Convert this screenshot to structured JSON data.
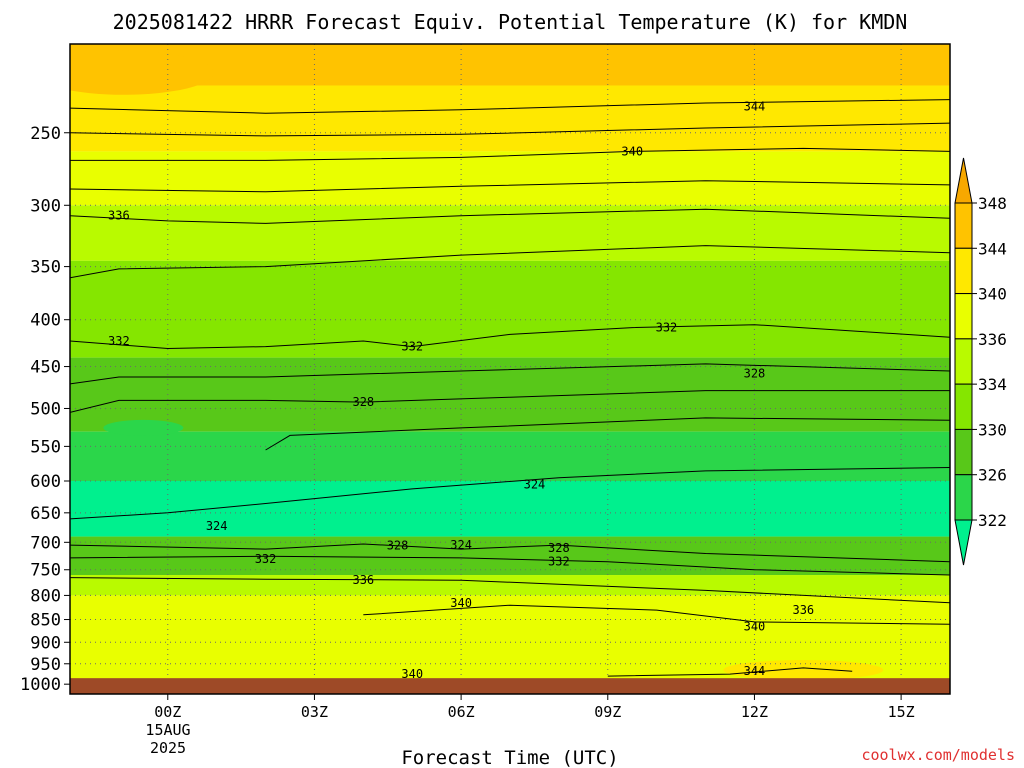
{
  "chart_data": {
    "type": "time-height contour",
    "title": "2025081422 HRRR Forecast Equiv. Potential Temperature (K) for KMDN",
    "xlabel": "Forecast Time (UTC)",
    "ylabel": "",
    "x_ticks": [
      {
        "hours": 2,
        "label": "00Z"
      },
      {
        "hours": 5,
        "label": "03Z"
      },
      {
        "hours": 8,
        "label": "06Z"
      },
      {
        "hours": 11,
        "label": "09Z"
      },
      {
        "hours": 14,
        "label": "12Z"
      },
      {
        "hours": 17,
        "label": "15Z"
      }
    ],
    "x_range": [
      0,
      18
    ],
    "date_label_line1": "15AUG",
    "date_label_line2": "2025",
    "y_scale": "log",
    "y_ticks": [
      250,
      300,
      350,
      400,
      450,
      500,
      550,
      600,
      650,
      700,
      750,
      800,
      850,
      900,
      950,
      1000
    ],
    "y_range": [
      200,
      1025
    ],
    "grid": true,
    "surface_pressure": 985,
    "surface_color": "#9e4a27",
    "colorbar": {
      "levels": [
        322,
        326,
        330,
        334,
        336,
        340,
        344,
        348
      ],
      "colors": [
        "#00f08e",
        "#2bd64a",
        "#58c819",
        "#85e600",
        "#b9fa00",
        "#e9ff00",
        "#ffe800",
        "#ffc300",
        "#f7a800"
      ],
      "extend": "both"
    },
    "contour_levels": [
      {
        "value": 344,
        "points": [
          [
            0,
            235
          ],
          [
            4,
            238
          ],
          [
            8,
            236
          ],
          [
            13,
            232
          ],
          [
            18,
            230
          ]
        ],
        "labels": [
          [
            14,
            234
          ]
        ]
      },
      {
        "value": 342,
        "points": [
          [
            0,
            250
          ],
          [
            4,
            252
          ],
          [
            8,
            251
          ],
          [
            13,
            247
          ],
          [
            18,
            244
          ]
        ],
        "labels": []
      },
      {
        "value": 340,
        "points": [
          [
            0,
            268
          ],
          [
            4,
            268
          ],
          [
            8,
            266
          ],
          [
            11.5,
            262
          ],
          [
            15,
            260
          ],
          [
            18,
            262
          ]
        ],
        "labels": [
          [
            11.5,
            262
          ]
        ]
      },
      {
        "value": 338,
        "points": [
          [
            0,
            288
          ],
          [
            4,
            290
          ],
          [
            8,
            286
          ],
          [
            13,
            282
          ],
          [
            18,
            285
          ]
        ],
        "labels": []
      },
      {
        "value": 336,
        "points": [
          [
            0,
            308
          ],
          [
            2,
            312
          ],
          [
            4,
            314
          ],
          [
            8,
            308
          ],
          [
            13,
            303
          ],
          [
            18,
            310
          ]
        ],
        "labels": [
          [
            1,
            308
          ]
        ]
      },
      {
        "value": 334,
        "points": [
          [
            0,
            360
          ],
          [
            1,
            352
          ],
          [
            4,
            350
          ],
          [
            8,
            340
          ],
          [
            13,
            332
          ],
          [
            18,
            338
          ]
        ],
        "labels": []
      },
      {
        "value": 332,
        "points": [
          [
            0,
            422
          ],
          [
            2,
            430
          ],
          [
            4,
            428
          ],
          [
            6,
            422
          ],
          [
            7,
            428
          ],
          [
            9,
            415
          ],
          [
            11.5,
            408
          ],
          [
            14,
            405
          ],
          [
            18,
            418
          ]
        ],
        "labels": [
          [
            1,
            422
          ],
          [
            7,
            428
          ],
          [
            12.2,
            408
          ]
        ]
      },
      {
        "value": 330,
        "points": [
          [
            0,
            470
          ],
          [
            1,
            462
          ],
          [
            4,
            462
          ],
          [
            8,
            455
          ],
          [
            13,
            447
          ],
          [
            18,
            455
          ]
        ],
        "labels": []
      },
      {
        "value": 328,
        "points": [
          [
            0,
            505
          ],
          [
            1,
            490
          ],
          [
            4,
            490
          ],
          [
            6,
            492
          ],
          [
            9,
            486
          ],
          [
            13,
            478
          ],
          [
            18,
            478
          ]
        ],
        "labels": [
          [
            6,
            492
          ],
          [
            14,
            458
          ]
        ]
      },
      {
        "value": 326,
        "points": [
          [
            4,
            555
          ],
          [
            4.5,
            535
          ],
          [
            8,
            525
          ],
          [
            13,
            512
          ],
          [
            18,
            515
          ]
        ],
        "labels": []
      },
      {
        "value": 324,
        "points": [
          [
            0,
            660
          ],
          [
            2,
            650
          ],
          [
            4,
            635
          ],
          [
            7,
            612
          ],
          [
            10,
            595
          ],
          [
            13,
            585
          ],
          [
            18,
            580
          ]
        ],
        "labels": [
          [
            9.5,
            605
          ],
          [
            3,
            672
          ],
          [
            8,
            705
          ]
        ]
      },
      {
        "value": 332,
        "points": [
          [
            0,
            728
          ],
          [
            4,
            725
          ],
          [
            8,
            728
          ],
          [
            11,
            735
          ],
          [
            14,
            750
          ],
          [
            18,
            760
          ]
        ],
        "labels": [
          [
            4,
            730
          ],
          [
            10,
            735
          ]
        ]
      },
      {
        "value": 328,
        "points": [
          [
            0,
            705
          ],
          [
            4,
            712
          ],
          [
            6,
            703
          ],
          [
            8,
            712
          ],
          [
            10,
            705
          ],
          [
            13,
            720
          ],
          [
            18,
            735
          ]
        ],
        "labels": [
          [
            6.7,
            706
          ],
          [
            10,
            710
          ]
        ]
      },
      {
        "value": 336,
        "points": [
          [
            0,
            765
          ],
          [
            4,
            768
          ],
          [
            8,
            770
          ],
          [
            13,
            790
          ],
          [
            18,
            815
          ]
        ],
        "labels": [
          [
            6,
            770
          ],
          [
            15,
            830
          ]
        ]
      },
      {
        "value": 340,
        "points": [
          [
            6,
            840
          ],
          [
            9,
            820
          ],
          [
            12,
            830
          ],
          [
            14,
            855
          ],
          [
            18,
            860
          ]
        ],
        "labels": [
          [
            8,
            815
          ],
          [
            14,
            865
          ],
          [
            7,
            975
          ]
        ]
      },
      {
        "value": 344,
        "points": [
          [
            11,
            980
          ],
          [
            13.5,
            975
          ],
          [
            15,
            960
          ],
          [
            16,
            968
          ]
        ],
        "labels": [
          [
            14,
            968
          ]
        ]
      }
    ]
  },
  "watermark": "coolwx.com/models"
}
